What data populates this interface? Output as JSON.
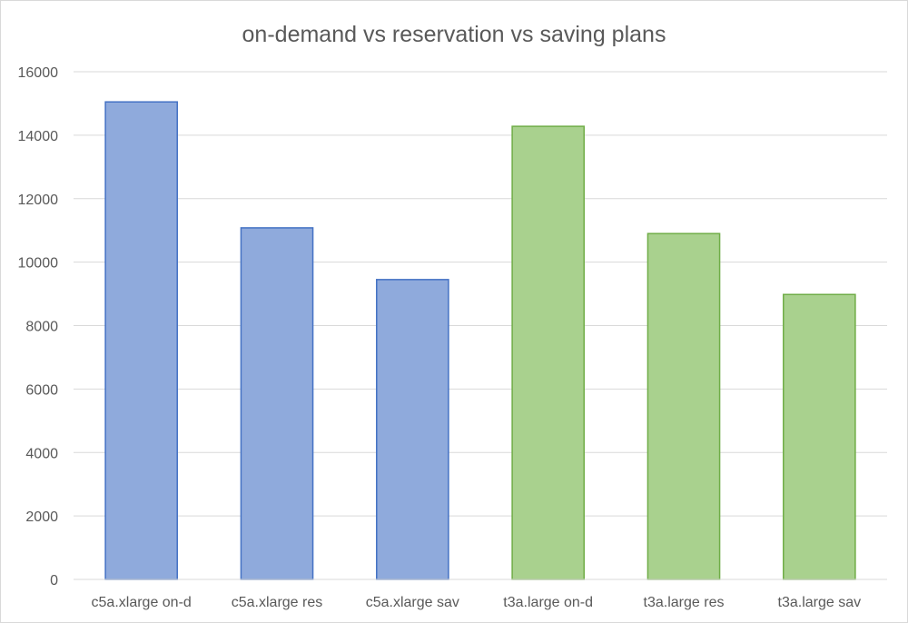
{
  "chart_data": {
    "type": "bar",
    "title": "on-demand vs reservation vs saving plans",
    "xlabel": "",
    "ylabel": "",
    "categories": [
      "c5a.xlarge on-d",
      "c5a.xlarge res",
      "c5a.xlarge sav",
      "t3a.large on-d",
      "t3a.large res",
      "t3a.large sav"
    ],
    "values": [
      15050,
      11080,
      9450,
      14280,
      10900,
      8980
    ],
    "bar_colors": [
      "#8faadc",
      "#8faadc",
      "#8faadc",
      "#a9d18e",
      "#a9d18e",
      "#a9d18e"
    ],
    "bar_border_colors": [
      "#4472c4",
      "#4472c4",
      "#4472c4",
      "#70ad47",
      "#70ad47",
      "#70ad47"
    ],
    "ylim": [
      0,
      16000
    ],
    "yticks": [
      "0",
      "2000",
      "4000",
      "6000",
      "8000",
      "10000",
      "12000",
      "14000",
      "16000"
    ],
    "grid": true,
    "legend": "none"
  }
}
